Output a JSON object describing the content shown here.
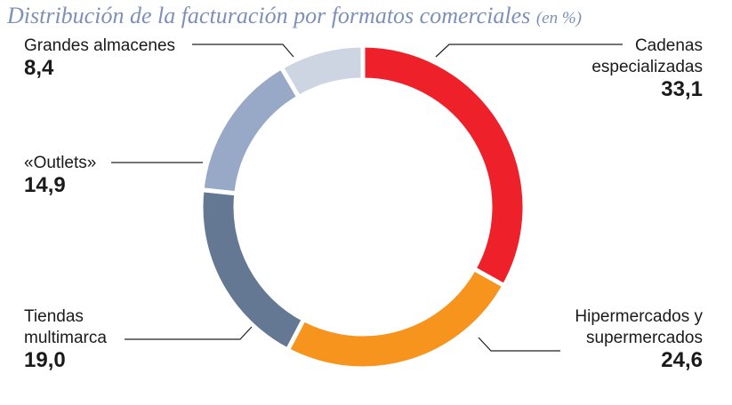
{
  "title": "Distribución de la facturación por formatos comerciales",
  "title_unit": "(en %)",
  "chart_data": {
    "type": "pie",
    "title": "Distribución de la facturación por formatos comerciales",
    "unit": "(en %)",
    "slices": [
      {
        "label": "Cadenas\nespecializadas",
        "value": 33.1,
        "display": "33,1",
        "color": "#ee2029"
      },
      {
        "label": "Hipermercados y\nsupermercados",
        "value": 24.6,
        "display": "24,6",
        "color": "#f7941d"
      },
      {
        "label": "Tiendas\nmultimarca",
        "value": 19.0,
        "display": "19,0",
        "color": "#647894"
      },
      {
        "label": "«Outlets»",
        "value": 14.9,
        "display": "14,9",
        "color": "#97a9c6"
      },
      {
        "label": "Grandes almacenes",
        "value": 8.4,
        "display": "8,4",
        "color": "#cdd5e3"
      }
    ]
  }
}
